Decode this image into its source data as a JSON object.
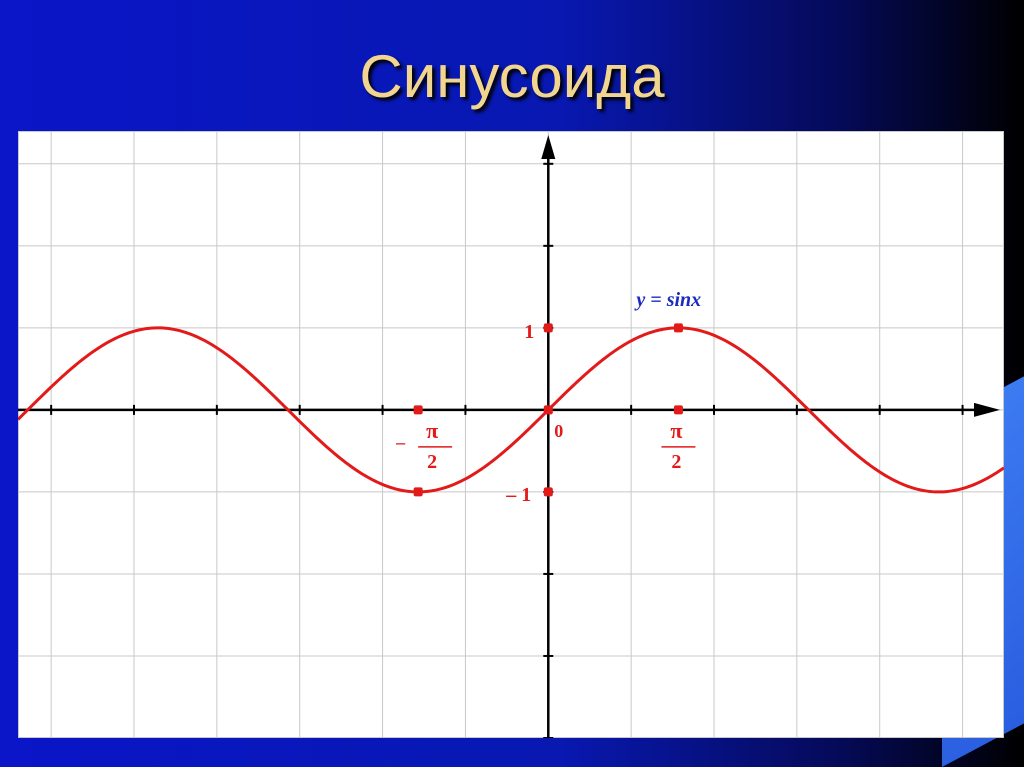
{
  "title": "Синусоида",
  "chart_data": {
    "type": "line",
    "function": "y = sin x",
    "series": [
      {
        "name": "y = sinx",
        "color": "#e21a1a"
      }
    ],
    "xlim": [
      -6.4,
      5.5
    ],
    "ylim": [
      -4.0,
      3.4
    ],
    "grid": true,
    "marked_points": [
      {
        "x": -1.5708,
        "y": -1
      },
      {
        "x": -1.5708,
        "y": 0
      },
      {
        "x": 0,
        "y": 0
      },
      {
        "x": 0,
        "y": 1
      },
      {
        "x": 0,
        "y": -1
      },
      {
        "x": 1.5708,
        "y": 1
      },
      {
        "x": 1.5708,
        "y": 0
      }
    ],
    "labels": {
      "func": "y = sinx",
      "origin": "0",
      "y_one": "1",
      "y_minus_one": "– 1",
      "pi": "π",
      "two": "2",
      "minus": "–"
    },
    "colors": {
      "curve": "#e21a1a",
      "axes": "#000000",
      "grid": "#c8c8c8",
      "func_label": "#1a2bbf"
    }
  }
}
